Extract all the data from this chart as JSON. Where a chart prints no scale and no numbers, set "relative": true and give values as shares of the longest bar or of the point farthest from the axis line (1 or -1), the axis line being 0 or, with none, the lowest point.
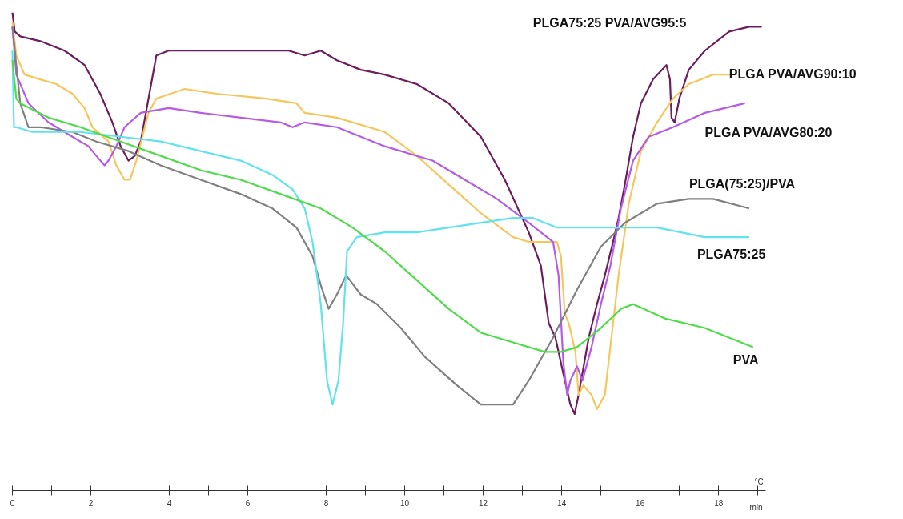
{
  "chart_data": {
    "type": "line",
    "relative": true,
    "annotations": [
      "°C",
      "min"
    ],
    "xlim": [
      0,
      19.2
    ],
    "xticks": [
      0,
      {
        "value": 1,
        "label": null
      },
      2,
      {
        "value": 3,
        "label": null
      },
      4,
      {
        "value": 5,
        "label": null
      },
      6,
      {
        "value": 7,
        "label": null
      },
      8,
      {
        "value": 9,
        "label": null
      },
      10,
      {
        "value": 11,
        "label": null
      },
      12,
      {
        "value": 13,
        "label": null
      },
      14,
      {
        "value": 15,
        "label": null
      },
      16,
      {
        "value": 17,
        "label": null
      },
      18,
      {
        "value": 19,
        "label": null
      }
    ],
    "grid": false,
    "marker": "none",
    "line_style": "solid",
    "series": [
      {
        "name": "PLGA75:25 PVA/AVG95:5",
        "color": "#6b1d5c",
        "x": [
          0,
          0.06,
          0.2,
          0.71,
          1.33,
          1.84,
          2.24,
          2.55,
          2.76,
          2.96,
          3.12,
          3.27,
          3.47,
          3.67,
          3.98,
          5.0,
          5.61,
          6.43,
          7.04,
          7.45,
          7.86,
          8.27,
          8.88,
          9.49,
          10.31,
          11.12,
          11.94,
          12.55,
          13.16,
          13.47,
          13.67,
          13.84,
          14.08,
          14.22,
          14.33,
          14.43,
          14.69,
          14.9,
          15.1,
          15.31,
          15.45,
          15.61,
          15.82,
          16.02,
          16.33,
          16.67,
          16.76,
          16.8,
          16.88,
          17.0,
          17.24,
          17.65,
          18.27,
          18.78,
          19.1
        ],
        "values": [
          1,
          0.96,
          0.95,
          0.94,
          0.92,
          0.89,
          0.83,
          0.77,
          0.72,
          0.69,
          0.7,
          0.73,
          0.82,
          0.91,
          0.92,
          0.92,
          0.92,
          0.92,
          0.92,
          0.91,
          0.92,
          0.9,
          0.88,
          0.87,
          0.85,
          0.81,
          0.74,
          0.65,
          0.54,
          0.47,
          0.35,
          0.32,
          0.23,
          0.18,
          0.16,
          0.2,
          0.32,
          0.39,
          0.45,
          0.52,
          0.57,
          0.64,
          0.74,
          0.81,
          0.86,
          0.89,
          0.86,
          0.78,
          0.77,
          0.82,
          0.88,
          0.92,
          0.96,
          0.97,
          0.97
        ]
      },
      {
        "name": "PLGA PVA/AVG90:10",
        "color": "#f5c65c",
        "x": [
          0,
          0.1,
          0.31,
          0.71,
          1.12,
          1.53,
          1.84,
          2.04,
          2.45,
          2.65,
          2.86,
          3.0,
          3.16,
          3.47,
          3.67,
          4.39,
          5.2,
          6.43,
          7.24,
          7.45,
          8.27,
          9.49,
          10.31,
          11.12,
          11.94,
          12.76,
          13.16,
          13.88,
          13.98,
          14.08,
          14.18,
          14.35,
          14.43,
          14.55,
          14.76,
          14.9,
          15.1,
          15.24,
          15.45,
          15.71,
          16.02,
          16.43,
          16.84,
          17.24,
          17.86,
          18.47
        ],
        "values": [
          0.98,
          0.91,
          0.87,
          0.86,
          0.85,
          0.83,
          0.8,
          0.76,
          0.73,
          0.68,
          0.65,
          0.65,
          0.69,
          0.79,
          0.82,
          0.84,
          0.83,
          0.82,
          0.81,
          0.79,
          0.78,
          0.75,
          0.7,
          0.64,
          0.58,
          0.53,
          0.52,
          0.52,
          0.49,
          0.37,
          0.35,
          0.29,
          0.2,
          0.22,
          0.2,
          0.17,
          0.2,
          0.3,
          0.45,
          0.6,
          0.71,
          0.77,
          0.82,
          0.85,
          0.87,
          0.87
        ]
      },
      {
        "name": "PLGA PVA/AVG80:20",
        "color": "#b55be8",
        "x": [
          0,
          0.1,
          0.41,
          0.92,
          1.53,
          1.94,
          2.14,
          2.35,
          2.45,
          2.65,
          2.86,
          3.27,
          3.98,
          4.8,
          5.82,
          6.84,
          7.14,
          7.45,
          8.27,
          9.49,
          10.71,
          11.53,
          12.35,
          13.16,
          13.78,
          13.92,
          14.04,
          14.14,
          14.22,
          14.39,
          14.53,
          14.76,
          15.0,
          15.24,
          15.51,
          15.82,
          16.22,
          16.84,
          17.65,
          18.67
        ],
        "values": [
          0.97,
          0.87,
          0.81,
          0.77,
          0.74,
          0.72,
          0.7,
          0.68,
          0.69,
          0.72,
          0.76,
          0.79,
          0.8,
          0.79,
          0.78,
          0.77,
          0.76,
          0.77,
          0.76,
          0.72,
          0.69,
          0.65,
          0.61,
          0.56,
          0.52,
          0.45,
          0.27,
          0.2,
          0.23,
          0.26,
          0.23,
          0.3,
          0.39,
          0.47,
          0.59,
          0.69,
          0.74,
          0.76,
          0.79,
          0.81
        ]
      },
      {
        "name": "PLGA(75:25)/PVA",
        "color": "#808080",
        "x": [
          0,
          0.1,
          0.2,
          0.41,
          0.71,
          1.53,
          2.14,
          2.96,
          3.78,
          4.8,
          5.82,
          6.63,
          7.24,
          7.65,
          7.86,
          8.06,
          8.27,
          8.51,
          8.88,
          9.29,
          9.9,
          10.51,
          11.33,
          11.94,
          12.35,
          12.76,
          13.16,
          13.78,
          14.39,
          15.0,
          15.61,
          16.43,
          17.24,
          17.86,
          18.78
        ],
        "values": [
          0.97,
          0.89,
          0.81,
          0.76,
          0.76,
          0.75,
          0.73,
          0.71,
          0.68,
          0.65,
          0.62,
          0.59,
          0.55,
          0.49,
          0.43,
          0.38,
          0.41,
          0.45,
          0.41,
          0.39,
          0.34,
          0.28,
          0.22,
          0.18,
          0.18,
          0.18,
          0.23,
          0.32,
          0.42,
          0.51,
          0.56,
          0.6,
          0.61,
          0.61,
          0.59
        ]
      },
      {
        "name": "PLGA75:25",
        "color": "#5fe3ec",
        "x": [
          0,
          0.04,
          0.1,
          0.51,
          1.73,
          2.76,
          3.78,
          4.8,
          5.82,
          6.63,
          7.14,
          7.45,
          7.65,
          7.86,
          8.02,
          8.16,
          8.31,
          8.43,
          8.53,
          8.78,
          9.49,
          10.31,
          11.12,
          11.94,
          12.76,
          13.27,
          13.57,
          13.88,
          14.18,
          15.2,
          16.43,
          17.65,
          18.78
        ],
        "values": [
          0.92,
          0.76,
          0.76,
          0.75,
          0.75,
          0.74,
          0.73,
          0.71,
          0.69,
          0.66,
          0.63,
          0.59,
          0.52,
          0.39,
          0.23,
          0.18,
          0.23,
          0.35,
          0.5,
          0.53,
          0.54,
          0.54,
          0.55,
          0.56,
          0.57,
          0.57,
          0.56,
          0.55,
          0.55,
          0.55,
          0.55,
          0.53,
          0.53
        ]
      },
      {
        "name": "PVA",
        "color": "#4fdc4a",
        "x": [
          0,
          0.1,
          0.2,
          0.92,
          1.73,
          2.76,
          3.78,
          4.8,
          5.82,
          6.84,
          7.86,
          8.67,
          9.49,
          10.31,
          11.12,
          11.94,
          12.76,
          13.57,
          13.98,
          14.39,
          15.0,
          15.51,
          15.82,
          16.63,
          17.65,
          18.88
        ],
        "values": [
          0.9,
          0.82,
          0.81,
          0.78,
          0.76,
          0.73,
          0.7,
          0.67,
          0.65,
          0.62,
          0.59,
          0.55,
          0.5,
          0.44,
          0.38,
          0.33,
          0.31,
          0.29,
          0.29,
          0.3,
          0.34,
          0.38,
          0.39,
          0.36,
          0.34,
          0.3
        ]
      }
    ]
  }
}
